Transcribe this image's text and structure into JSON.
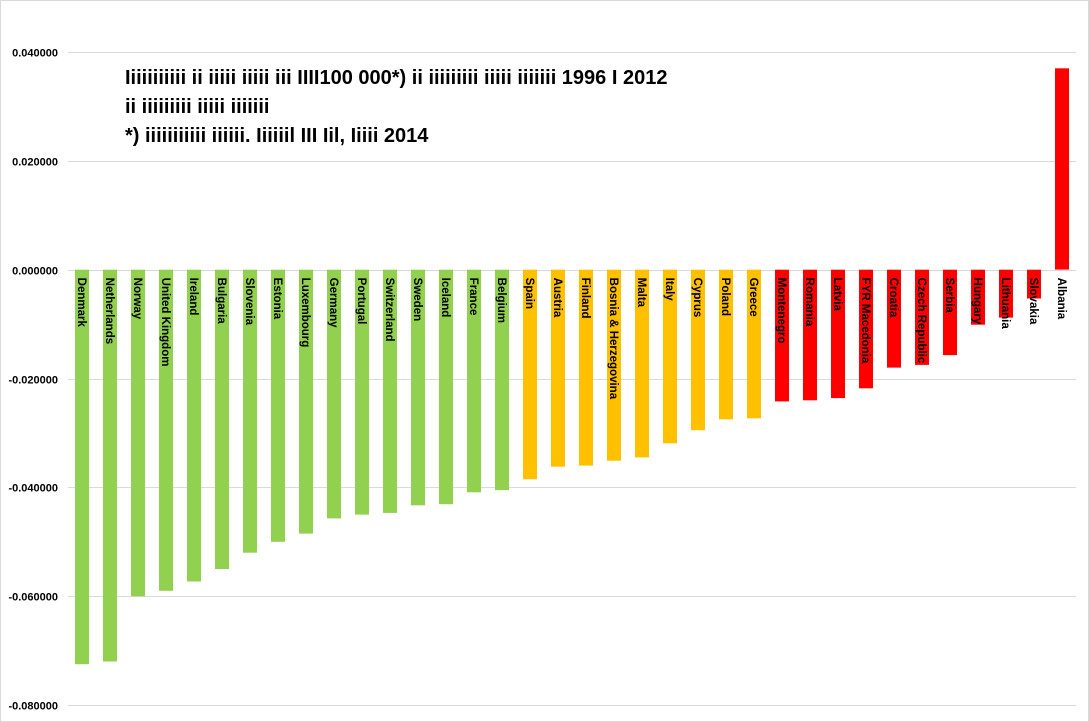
{
  "chart_data": {
    "type": "bar",
    "title_lines": [
      "Iiiiiiiiiii ii iiiii iiiii iii IIII100 000*) ii iiiiiiiii iiiii iiiiiii 1996 I 2012",
      "ii iiiiiiiii iiiii iiiiiii",
      "*) iiiiiiiiiii iiiiii. Iiiiiil III Iil, Iiiii 2014"
    ],
    "xlabel": "",
    "ylabel": "",
    "ylim": [
      -0.08,
      0.04
    ],
    "yticks": [
      0.04,
      0.02,
      0.0,
      -0.02,
      -0.04,
      -0.06,
      -0.08
    ],
    "ytick_labels": [
      "0.040000",
      "0.020000",
      "0.000000",
      "-0.020000",
      "-0.040000",
      "-0.060000",
      "-0.080000"
    ],
    "grid": true,
    "legend": "none",
    "colors": {
      "green": "#92d050",
      "orange": "#ffc000",
      "red": "#ff0000",
      "grid": "#d9d9d9"
    },
    "categories": [
      "Denmark",
      "Netherlands",
      "Norway",
      "United Kingdom",
      "Ireland",
      "Bulgaria",
      "Slovenia",
      "Estonia",
      "Luxembourg",
      "Germany",
      "Portugal",
      "Switzerland",
      "Sweden",
      "Iceland",
      "France",
      "Belgium",
      "Spain",
      "Austria",
      "Finland",
      "Bosnia & Herzegovina",
      "Malta",
      "Italy",
      "Cyprus",
      "Poland",
      "Greece",
      "Montenegro",
      "Romania",
      "Latvia",
      "FYR Macedonia",
      "Croatia",
      "Czech Republic",
      "Serbia",
      "Hungary",
      "Lithuania",
      "Slovakia",
      "Albania"
    ],
    "values": [
      -0.0725,
      -0.072,
      -0.06,
      -0.059,
      -0.0573,
      -0.055,
      -0.052,
      -0.05,
      -0.0485,
      -0.0457,
      -0.045,
      -0.0447,
      -0.0433,
      -0.0431,
      -0.0409,
      -0.0405,
      -0.0385,
      -0.0362,
      -0.036,
      -0.0351,
      -0.0345,
      -0.0319,
      -0.0295,
      -0.0275,
      -0.0273,
      -0.0242,
      -0.024,
      -0.0236,
      -0.0218,
      -0.018,
      -0.0175,
      -0.0157,
      -0.0101,
      -0.0088,
      -0.0053,
      0.037
    ],
    "bar_colors": [
      "green",
      "green",
      "green",
      "green",
      "green",
      "green",
      "green",
      "green",
      "green",
      "green",
      "green",
      "green",
      "green",
      "green",
      "green",
      "green",
      "orange",
      "orange",
      "orange",
      "orange",
      "orange",
      "orange",
      "orange",
      "orange",
      "orange",
      "red",
      "red",
      "red",
      "red",
      "red",
      "red",
      "red",
      "red",
      "red",
      "red",
      "red"
    ]
  }
}
